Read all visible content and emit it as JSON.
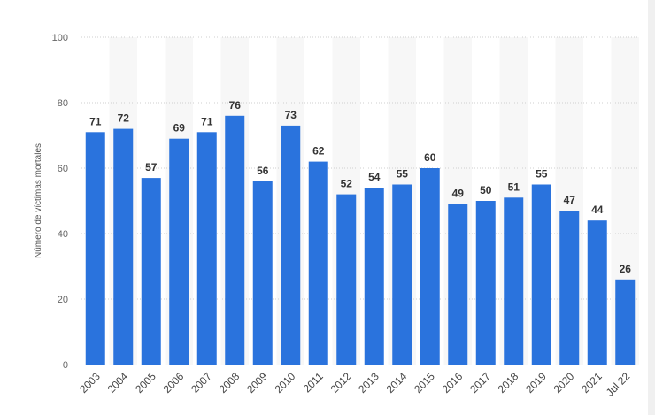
{
  "chart_data": {
    "type": "bar",
    "title": "",
    "xlabel": "",
    "ylabel": "Número de víctimas mortales",
    "ylim": [
      0,
      100
    ],
    "yticks": [
      0,
      20,
      40,
      60,
      80,
      100
    ],
    "grid": true,
    "legend": "none",
    "categories": [
      "2003",
      "2004",
      "2005",
      "2006",
      "2007",
      "2008",
      "2009",
      "2010",
      "2011",
      "2012",
      "2013",
      "2014",
      "2015",
      "2016",
      "2017",
      "2018",
      "2019",
      "2020",
      "2021",
      "Jul 22"
    ],
    "values": [
      71,
      72,
      57,
      69,
      71,
      76,
      56,
      73,
      62,
      52,
      54,
      55,
      60,
      49,
      50,
      51,
      55,
      47,
      44,
      26
    ],
    "bar_color": "#2a73dd"
  }
}
